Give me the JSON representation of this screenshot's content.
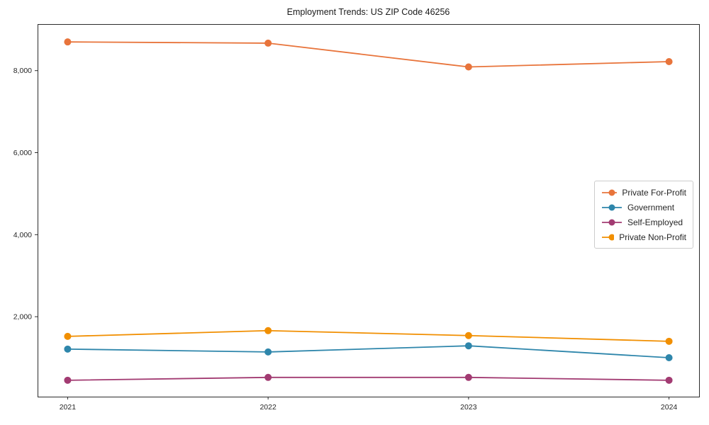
{
  "chart_data": {
    "type": "line",
    "title": "Employment Trends: US ZIP Code 46256",
    "categories": [
      "2021",
      "2022",
      "2023",
      "2024"
    ],
    "series": [
      {
        "name": "Private For-Profit",
        "color": "#E8743B",
        "values": [
          8700,
          8670,
          8090,
          8220
        ]
      },
      {
        "name": "Government",
        "color": "#2E86AB",
        "values": [
          1210,
          1140,
          1290,
          1000
        ]
      },
      {
        "name": "Self-Employed",
        "color": "#A23B72",
        "values": [
          450,
          520,
          520,
          450
        ]
      },
      {
        "name": "Private Non-Profit",
        "color": "#F18F01",
        "values": [
          1520,
          1660,
          1540,
          1400
        ]
      }
    ],
    "yticks": {
      "values": [
        2000,
        4000,
        6000,
        8000
      ],
      "labels": [
        "2,000",
        "4,000",
        "6,000",
        "8,000"
      ]
    },
    "ylim": [
      50,
      9135
    ],
    "x_margin": 0.15,
    "xlabel": "",
    "ylabel": "",
    "grid": false,
    "legend_position": "center-right",
    "marker": "circle",
    "axis_color": "#2b2b2b",
    "text_color": "#262626",
    "background": "#ffffff"
  }
}
